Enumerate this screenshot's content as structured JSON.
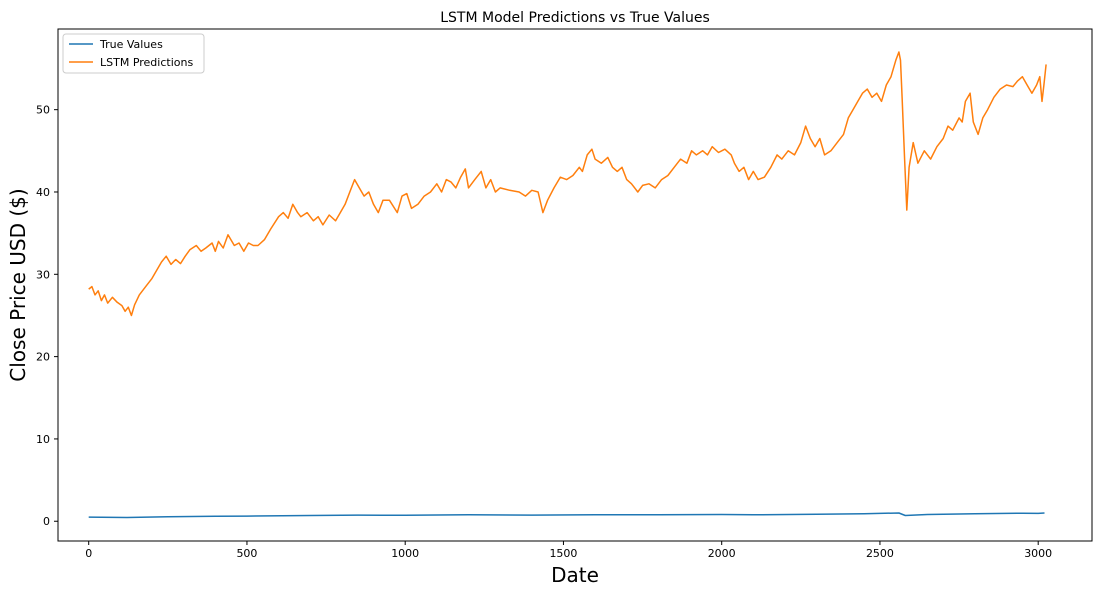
{
  "chart_data": {
    "type": "line",
    "title": "LSTM Model Predictions vs True Values",
    "xlabel": "Date",
    "ylabel": "Close Price USD ($)",
    "xlim": [
      -97,
      3170
    ],
    "ylim": [
      -2.4,
      59.8
    ],
    "xticks": [
      0,
      500,
      1000,
      1500,
      2000,
      2500,
      3000
    ],
    "yticks": [
      0,
      10,
      20,
      30,
      40,
      50
    ],
    "grid": false,
    "legend_position": "upper-left",
    "series": [
      {
        "name": "True Values",
        "color": "#1f77b4",
        "points": [
          [
            0,
            0.5
          ],
          [
            120,
            0.45
          ],
          [
            250,
            0.55
          ],
          [
            400,
            0.6
          ],
          [
            500,
            0.62
          ],
          [
            700,
            0.7
          ],
          [
            850,
            0.75
          ],
          [
            1000,
            0.72
          ],
          [
            1200,
            0.78
          ],
          [
            1400,
            0.75
          ],
          [
            1600,
            0.8
          ],
          [
            1800,
            0.78
          ],
          [
            2000,
            0.82
          ],
          [
            2100,
            0.78
          ],
          [
            2300,
            0.85
          ],
          [
            2450,
            0.92
          ],
          [
            2560,
            1.0
          ],
          [
            2580,
            0.7
          ],
          [
            2650,
            0.82
          ],
          [
            2800,
            0.9
          ],
          [
            2950,
            0.98
          ],
          [
            3000,
            0.95
          ],
          [
            3020,
            1.0
          ]
        ]
      },
      {
        "name": "LSTM Predictions",
        "color": "#ff7f0e",
        "points": [
          [
            0,
            28.2
          ],
          [
            10,
            28.5
          ],
          [
            20,
            27.5
          ],
          [
            30,
            28
          ],
          [
            40,
            26.8
          ],
          [
            50,
            27.5
          ],
          [
            60,
            26.5
          ],
          [
            75,
            27.2
          ],
          [
            90,
            26.6
          ],
          [
            105,
            26.2
          ],
          [
            115,
            25.5
          ],
          [
            125,
            26
          ],
          [
            135,
            25
          ],
          [
            145,
            26.3
          ],
          [
            160,
            27.5
          ],
          [
            180,
            28.5
          ],
          [
            200,
            29.5
          ],
          [
            215,
            30.5
          ],
          [
            230,
            31.5
          ],
          [
            245,
            32.2
          ],
          [
            260,
            31.2
          ],
          [
            275,
            31.8
          ],
          [
            290,
            31.3
          ],
          [
            305,
            32.2
          ],
          [
            320,
            33
          ],
          [
            340,
            33.5
          ],
          [
            355,
            32.8
          ],
          [
            370,
            33.2
          ],
          [
            390,
            33.8
          ],
          [
            400,
            32.8
          ],
          [
            410,
            34
          ],
          [
            425,
            33.2
          ],
          [
            440,
            34.8
          ],
          [
            460,
            33.5
          ],
          [
            475,
            33.8
          ],
          [
            490,
            32.8
          ],
          [
            505,
            33.8
          ],
          [
            520,
            33.5
          ],
          [
            535,
            33.5
          ],
          [
            555,
            34.2
          ],
          [
            575,
            35.5
          ],
          [
            600,
            37
          ],
          [
            615,
            37.5
          ],
          [
            630,
            36.8
          ],
          [
            645,
            38.5
          ],
          [
            660,
            37.5
          ],
          [
            670,
            37
          ],
          [
            690,
            37.5
          ],
          [
            710,
            36.5
          ],
          [
            725,
            37
          ],
          [
            740,
            36
          ],
          [
            760,
            37.2
          ],
          [
            780,
            36.5
          ],
          [
            795,
            37.5
          ],
          [
            810,
            38.5
          ],
          [
            825,
            40
          ],
          [
            840,
            41.5
          ],
          [
            855,
            40.5
          ],
          [
            870,
            39.5
          ],
          [
            885,
            40
          ],
          [
            900,
            38.5
          ],
          [
            915,
            37.5
          ],
          [
            930,
            39
          ],
          [
            950,
            39
          ],
          [
            975,
            37.5
          ],
          [
            990,
            39.5
          ],
          [
            1005,
            39.8
          ],
          [
            1020,
            38
          ],
          [
            1040,
            38.5
          ],
          [
            1060,
            39.5
          ],
          [
            1080,
            40
          ],
          [
            1100,
            41
          ],
          [
            1115,
            40
          ],
          [
            1130,
            41.5
          ],
          [
            1145,
            41.2
          ],
          [
            1160,
            40.5
          ],
          [
            1175,
            41.8
          ],
          [
            1190,
            42.8
          ],
          [
            1200,
            40.5
          ],
          [
            1220,
            41.5
          ],
          [
            1240,
            42.5
          ],
          [
            1255,
            40.5
          ],
          [
            1270,
            41.5
          ],
          [
            1285,
            40
          ],
          [
            1300,
            40.5
          ],
          [
            1330,
            40.2
          ],
          [
            1360,
            40
          ],
          [
            1380,
            39.5
          ],
          [
            1400,
            40.2
          ],
          [
            1420,
            40
          ],
          [
            1435,
            37.5
          ],
          [
            1450,
            39
          ],
          [
            1470,
            40.5
          ],
          [
            1490,
            41.8
          ],
          [
            1510,
            41.5
          ],
          [
            1530,
            42
          ],
          [
            1550,
            43
          ],
          [
            1560,
            42.5
          ],
          [
            1575,
            44.5
          ],
          [
            1590,
            45.2
          ],
          [
            1600,
            44
          ],
          [
            1620,
            43.5
          ],
          [
            1640,
            44.2
          ],
          [
            1655,
            43
          ],
          [
            1670,
            42.5
          ],
          [
            1685,
            43
          ],
          [
            1700,
            41.5
          ],
          [
            1715,
            41
          ],
          [
            1735,
            40
          ],
          [
            1750,
            40.8
          ],
          [
            1770,
            41
          ],
          [
            1790,
            40.5
          ],
          [
            1810,
            41.5
          ],
          [
            1830,
            42
          ],
          [
            1850,
            43
          ],
          [
            1870,
            44
          ],
          [
            1890,
            43.5
          ],
          [
            1905,
            45
          ],
          [
            1920,
            44.5
          ],
          [
            1940,
            45
          ],
          [
            1955,
            44.5
          ],
          [
            1970,
            45.5
          ],
          [
            1990,
            44.8
          ],
          [
            2010,
            45.2
          ],
          [
            2030,
            44.5
          ],
          [
            2040,
            43.5
          ],
          [
            2055,
            42.5
          ],
          [
            2070,
            43
          ],
          [
            2085,
            41.5
          ],
          [
            2100,
            42.5
          ],
          [
            2115,
            41.5
          ],
          [
            2135,
            41.8
          ],
          [
            2155,
            43
          ],
          [
            2175,
            44.5
          ],
          [
            2190,
            44
          ],
          [
            2210,
            45
          ],
          [
            2230,
            44.5
          ],
          [
            2250,
            46
          ],
          [
            2265,
            48
          ],
          [
            2280,
            46.5
          ],
          [
            2295,
            45.5
          ],
          [
            2310,
            46.5
          ],
          [
            2325,
            44.5
          ],
          [
            2345,
            45
          ],
          [
            2365,
            46
          ],
          [
            2385,
            47
          ],
          [
            2400,
            49
          ],
          [
            2415,
            50
          ],
          [
            2430,
            51
          ],
          [
            2445,
            52
          ],
          [
            2460,
            52.5
          ],
          [
            2475,
            51.5
          ],
          [
            2490,
            52
          ],
          [
            2505,
            51
          ],
          [
            2520,
            53
          ],
          [
            2535,
            54
          ],
          [
            2550,
            56
          ],
          [
            2560,
            57
          ],
          [
            2565,
            56
          ],
          [
            2570,
            51.5
          ],
          [
            2578,
            44
          ],
          [
            2585,
            37.8
          ],
          [
            2592,
            43
          ],
          [
            2605,
            46
          ],
          [
            2620,
            43.5
          ],
          [
            2640,
            45
          ],
          [
            2660,
            44
          ],
          [
            2680,
            45.5
          ],
          [
            2700,
            46.5
          ],
          [
            2715,
            48
          ],
          [
            2730,
            47.5
          ],
          [
            2750,
            49
          ],
          [
            2760,
            48.5
          ],
          [
            2770,
            51
          ],
          [
            2785,
            52
          ],
          [
            2795,
            48.5
          ],
          [
            2810,
            47
          ],
          [
            2825,
            49
          ],
          [
            2840,
            50
          ],
          [
            2860,
            51.5
          ],
          [
            2880,
            52.5
          ],
          [
            2900,
            53
          ],
          [
            2920,
            52.8
          ],
          [
            2935,
            53.5
          ],
          [
            2950,
            54
          ],
          [
            2965,
            53
          ],
          [
            2980,
            52
          ],
          [
            2995,
            53
          ],
          [
            3005,
            54
          ],
          [
            3012,
            51
          ],
          [
            3018,
            53
          ],
          [
            3025,
            55.5
          ]
        ]
      }
    ]
  }
}
